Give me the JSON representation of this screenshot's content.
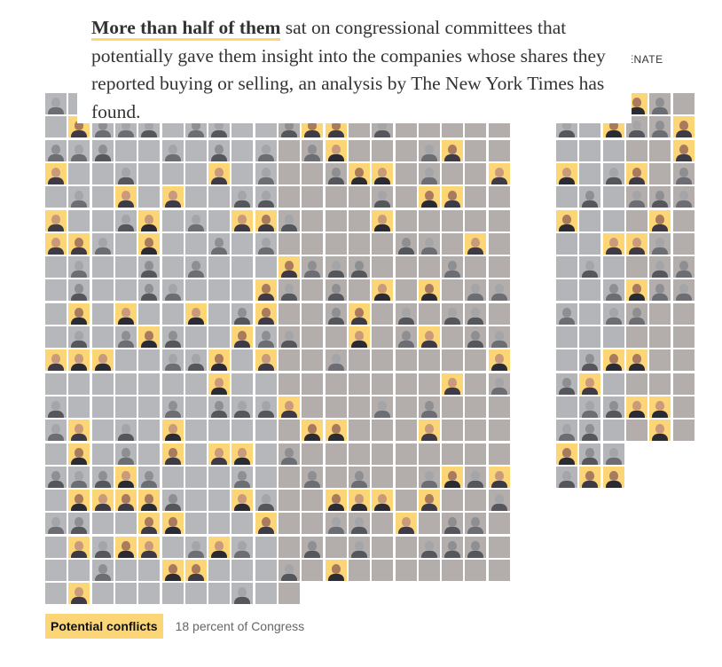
{
  "intro": {
    "highlight": "More than half of them",
    "rest": " sat on congressional committees that potentially gave them insight into the companies whose shares they reported buying or selling, an analysis by The New York Times has found."
  },
  "chamber_label": "ENATE",
  "legend": {
    "chip_label": "Potential conflicts",
    "percent_text": "18 percent of Congress"
  },
  "colors": {
    "highlight": "#fbd576",
    "democrat_gray": "#b5b7bb",
    "republican_gray": "#b3aeab",
    "text": "#333333"
  },
  "house_portraits": "0000000000000000000000000000000000000000000000000000000000000000000000000000000000000000000000000000000000000000000000000000000000000000000000000000000000000000000000000000000000000000000000000000000000000000000000000000000000000000000000000000000000000000000000000000000000000000000000000000000000000000000000000000000000000000000000000000000000000000000000000000000000000000000000000000000000000000000000000000000000000000000000000000000000000000000000000000000000000000000000000000000000000000000000000000000000000000000000",
  "senate_portraits": "0000000000000000000000000000000000000000000000000000000000000000000000000000000000000000000000000000000000000000000000000000000000000000000000000000000000000000000000000000000000000000000000000000000000000000000000000000000000000000000000000000000000000000"
}
